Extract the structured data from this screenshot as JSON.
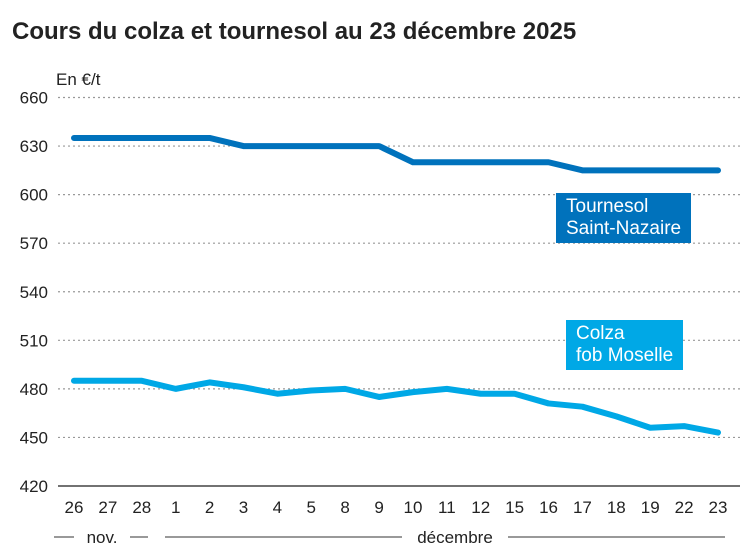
{
  "title": "Cours du colza et tournesol au 23 décembre 2025",
  "chart_data": {
    "type": "line",
    "title": "Cours du colza et tournesol au 23 décembre 2025",
    "ylabel": "En €/t",
    "ylim": [
      420,
      660
    ],
    "yticks": [
      420,
      450,
      480,
      510,
      540,
      570,
      600,
      630,
      660
    ],
    "categories": [
      "26",
      "27",
      "28",
      "1",
      "2",
      "3",
      "4",
      "5",
      "8",
      "9",
      "10",
      "11",
      "12",
      "15",
      "16",
      "17",
      "18",
      "19",
      "22",
      "23"
    ],
    "month_labels": [
      "nov.",
      "décembre"
    ],
    "grid": true,
    "series": [
      {
        "name": "Tournesol Saint-Nazaire",
        "name_lines": [
          "Tournesol",
          "Saint-Nazaire"
        ],
        "color": "#0072bc",
        "values": [
          635,
          635,
          635,
          635,
          635,
          630,
          630,
          630,
          630,
          630,
          620,
          620,
          620,
          620,
          620,
          615,
          615,
          615,
          615,
          615
        ]
      },
      {
        "name": "Colza fob Moselle",
        "name_lines": [
          "Colza",
          "fob Moselle"
        ],
        "color": "#00a8e6",
        "values": [
          485,
          485,
          485,
          480,
          484,
          481,
          477,
          479,
          480,
          475,
          478,
          480,
          477,
          477,
          471,
          469,
          463,
          456,
          457,
          453
        ]
      }
    ]
  }
}
